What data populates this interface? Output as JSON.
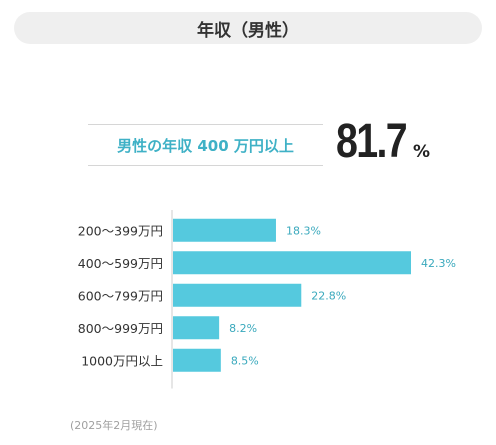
{
  "header": {
    "title": "年収（男性）"
  },
  "headline": {
    "label": "男性の年収 400 万円以上",
    "value": "81.7",
    "unit": "%"
  },
  "chart_data": {
    "type": "bar",
    "orientation": "horizontal",
    "categories": [
      "200〜399万円",
      "400〜599万円",
      "600〜799万円",
      "800〜999万円",
      "1000万円以上"
    ],
    "values": [
      18.3,
      42.3,
      22.8,
      8.2,
      8.5
    ],
    "value_labels": [
      "18.3%",
      "42.3%",
      "22.8%",
      "8.2%",
      "8.5%"
    ],
    "bar_color": "#55c9de",
    "label_color": "#3aa9bd",
    "axis_color": "#cccccc",
    "grid": false,
    "xlim": [
      0,
      45
    ]
  },
  "footnote": "(2025年2月現在)"
}
